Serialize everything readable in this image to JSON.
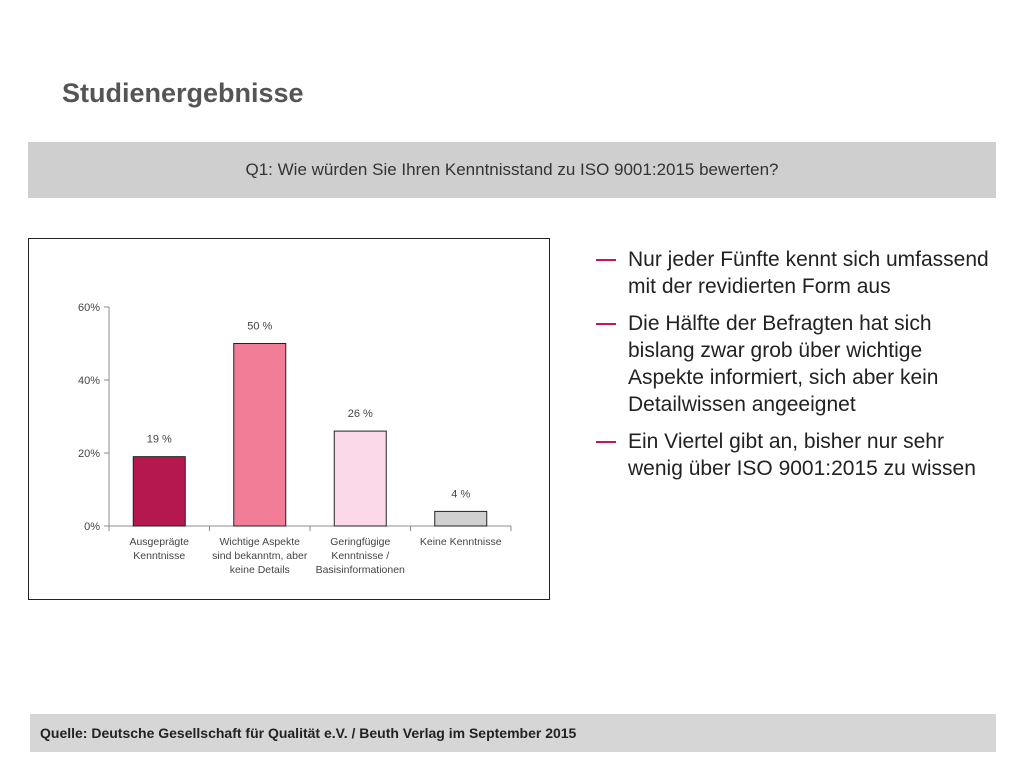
{
  "page": {
    "title": "Studienergebnisse",
    "question": "Q1: Wie würden Sie Ihren Kenntnisstand zu ISO 9001:2015 bewerten?",
    "source": "Quelle: Deutsche Gesellschaft für Qualität e.V. / Beuth Verlag im September  2015"
  },
  "bullets": [
    "Nur jeder Fünfte kennt sich umfassend mit der revidierten Form aus",
    "Die Hälfte der Befragten hat sich bislang zwar grob über wichtige Aspekte informiert, sich aber kein Detailwissen angeeignet",
    "Ein Viertel gibt an, bisher nur sehr wenig über ISO 9001:2015 zu wissen"
  ],
  "colors": {
    "dash": "#c2185b",
    "axis": "#8c8c8c"
  },
  "chart_data": {
    "type": "bar",
    "title": "",
    "xlabel": "",
    "ylabel": "",
    "ylim": [
      0,
      60
    ],
    "yticks": [
      0,
      20,
      40,
      60
    ],
    "ytick_labels": [
      "0%",
      "20%",
      "40%",
      "60%"
    ],
    "grid": false,
    "categories": [
      [
        "Ausgeprägte",
        "Kenntnisse"
      ],
      [
        "Wichtige Aspekte",
        "sind bekanntm, aber",
        "keine Details"
      ],
      [
        "Geringfügige",
        "Kenntnisse /",
        "Basisinformationen"
      ],
      [
        "Keine Kenntnisse"
      ]
    ],
    "values": [
      19,
      50,
      26,
      4
    ],
    "value_labels": [
      "19 %",
      "50 %",
      "26 %",
      "4 %"
    ],
    "bar_colors": [
      "#b5174f",
      "#f27d96",
      "#fbd9e9",
      "#d0d0d0"
    ]
  }
}
